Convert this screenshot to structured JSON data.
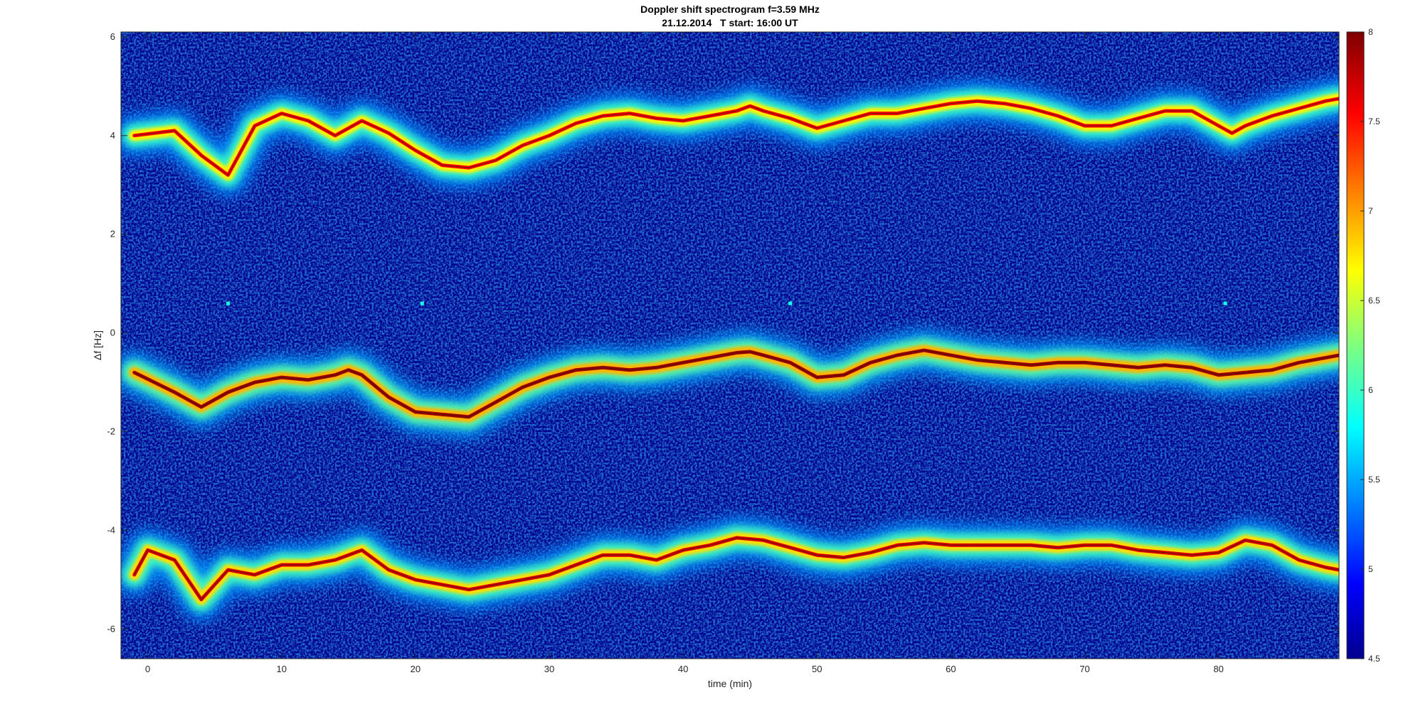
{
  "chart_data": {
    "type": "heatmap",
    "title": "Doppler shift spectrogram f=3.59 MHz",
    "subtitle": "21.12.2014   T start: 16:00 UT",
    "xlabel": "time (min)",
    "ylabel": "Δf [Hz]",
    "xlim": [
      -2,
      89
    ],
    "ylim": [
      -6.6,
      6.1
    ],
    "xticks": [
      0,
      10,
      20,
      30,
      40,
      50,
      60,
      70,
      80
    ],
    "yticks": [
      -6,
      -4,
      -2,
      0,
      2,
      4,
      6
    ],
    "colorbar": {
      "range": [
        4.5,
        8
      ],
      "ticks": [
        4.5,
        5,
        5.5,
        6,
        6.5,
        7,
        7.5,
        8
      ],
      "colormap": "jet",
      "placement": "right"
    },
    "background_level": 4.7,
    "traces": [
      {
        "x": [
          -1,
          2,
          4,
          6,
          8,
          10,
          12,
          14,
          16,
          18,
          20,
          22,
          24,
          26,
          28,
          30,
          32,
          34,
          36,
          38,
          40,
          42,
          44,
          45,
          46,
          48,
          50,
          52,
          54,
          56,
          58,
          60,
          62,
          64,
          66,
          68,
          70,
          72,
          74,
          76,
          78,
          80,
          81,
          82,
          84,
          86,
          88,
          89
        ],
        "y": [
          4.0,
          4.1,
          3.6,
          3.2,
          4.2,
          4.45,
          4.3,
          4.0,
          4.3,
          4.05,
          3.7,
          3.4,
          3.35,
          3.5,
          3.8,
          4.0,
          4.25,
          4.4,
          4.45,
          4.35,
          4.3,
          4.4,
          4.5,
          4.6,
          4.5,
          4.35,
          4.15,
          4.3,
          4.45,
          4.45,
          4.55,
          4.65,
          4.7,
          4.65,
          4.55,
          4.4,
          4.2,
          4.2,
          4.35,
          4.5,
          4.5,
          4.2,
          4.05,
          4.2,
          4.4,
          4.55,
          4.7,
          4.75
        ],
        "peak": 7.6
      },
      {
        "x": [
          -1,
          2,
          4,
          6,
          8,
          10,
          12,
          14,
          15,
          16,
          18,
          20,
          22,
          24,
          26,
          28,
          30,
          32,
          34,
          36,
          38,
          40,
          42,
          44,
          45,
          46,
          48,
          50,
          52,
          54,
          56,
          58,
          60,
          62,
          64,
          66,
          68,
          70,
          72,
          74,
          76,
          78,
          80,
          82,
          84,
          86,
          88,
          89
        ],
        "y": [
          -0.8,
          -1.2,
          -1.5,
          -1.2,
          -1.0,
          -0.9,
          -0.95,
          -0.85,
          -0.75,
          -0.85,
          -1.3,
          -1.6,
          -1.65,
          -1.7,
          -1.4,
          -1.1,
          -0.9,
          -0.75,
          -0.7,
          -0.75,
          -0.7,
          -0.6,
          -0.5,
          -0.4,
          -0.38,
          -0.45,
          -0.6,
          -0.9,
          -0.85,
          -0.6,
          -0.45,
          -0.35,
          -0.45,
          -0.55,
          -0.6,
          -0.65,
          -0.6,
          -0.6,
          -0.65,
          -0.7,
          -0.65,
          -0.7,
          -0.85,
          -0.8,
          -0.75,
          -0.6,
          -0.5,
          -0.45
        ],
        "peak": 7.9
      },
      {
        "x": [
          -1,
          0,
          2,
          4,
          6,
          8,
          10,
          12,
          14,
          16,
          18,
          20,
          22,
          24,
          26,
          28,
          30,
          32,
          34,
          36,
          38,
          40,
          42,
          44,
          46,
          48,
          50,
          52,
          54,
          56,
          58,
          60,
          62,
          64,
          66,
          68,
          70,
          72,
          74,
          76,
          78,
          80,
          82,
          84,
          86,
          88,
          89
        ],
        "y": [
          -4.9,
          -4.4,
          -4.6,
          -5.4,
          -4.8,
          -4.9,
          -4.7,
          -4.7,
          -4.6,
          -4.4,
          -4.8,
          -5.0,
          -5.1,
          -5.2,
          -5.1,
          -5.0,
          -4.9,
          -4.7,
          -4.5,
          -4.5,
          -4.6,
          -4.4,
          -4.3,
          -4.15,
          -4.2,
          -4.35,
          -4.5,
          -4.55,
          -4.45,
          -4.3,
          -4.25,
          -4.3,
          -4.3,
          -4.3,
          -4.3,
          -4.35,
          -4.3,
          -4.3,
          -4.4,
          -4.45,
          -4.5,
          -4.45,
          -4.2,
          -4.3,
          -4.6,
          -4.75,
          -4.8
        ],
        "peak": 7.7
      }
    ],
    "markers": [
      {
        "x": 6,
        "y": 0.6
      },
      {
        "x": 20.5,
        "y": 0.6
      },
      {
        "x": 48,
        "y": 0.6
      },
      {
        "x": 80.5,
        "y": 0.6
      }
    ]
  }
}
